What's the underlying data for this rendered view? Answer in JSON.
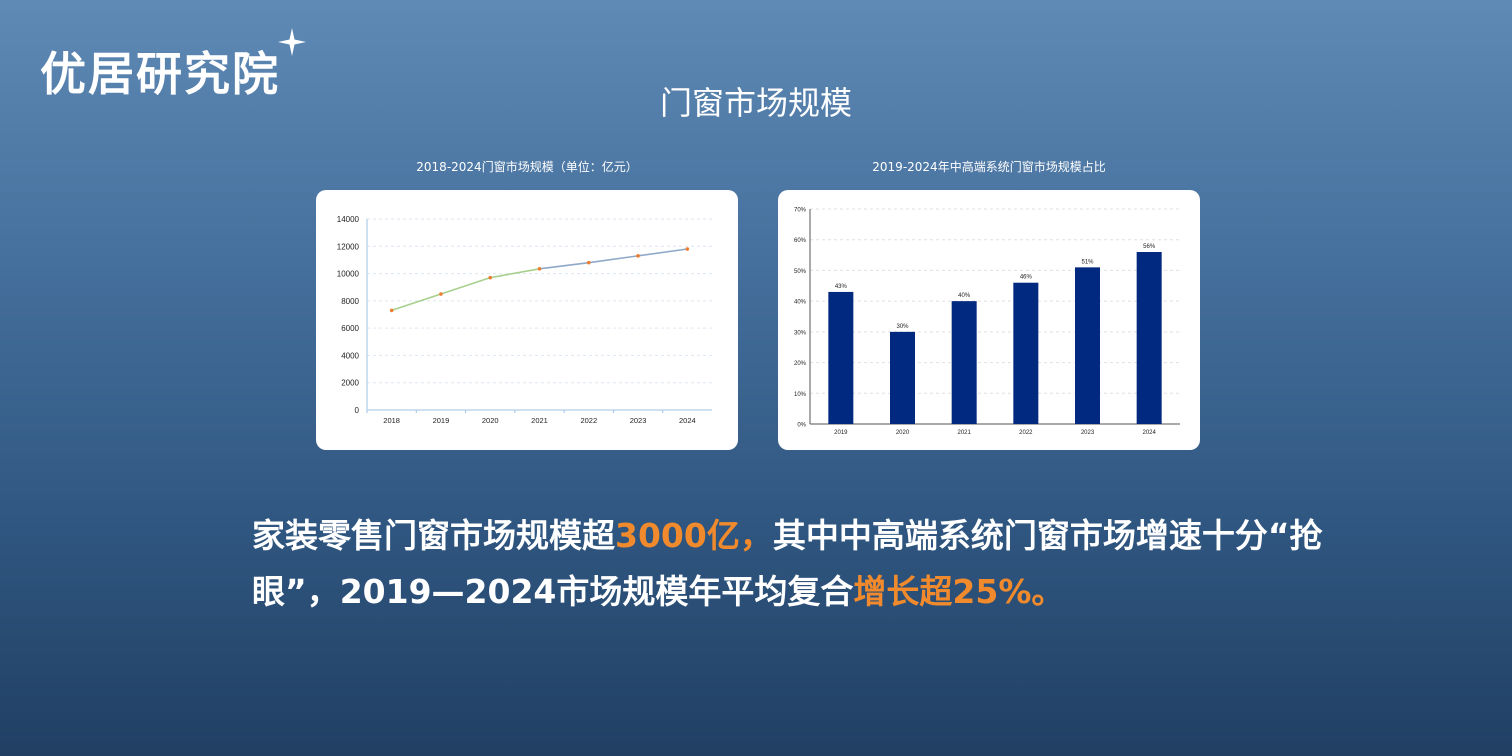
{
  "brand": {
    "name": "优居研究院"
  },
  "page": {
    "title": "门窗市场规模"
  },
  "summary": {
    "part1": "家装零售门窗市场规模超",
    "highlight1": "3000亿，",
    "part2": "其中中高端系统门窗市场增速十分“抢眼”，2019—2024市场规模年平均复合",
    "highlight2": "增长超25%。"
  },
  "colors": {
    "accent": "#f08a2c",
    "bar": "#00297f",
    "line_early": "#a8d08d",
    "line_late": "#8ea8c8",
    "marker": "#ed7d31"
  },
  "chart_data": [
    {
      "type": "line",
      "title": "2018-2024门窗市场规模（单位：亿元）",
      "x": [
        "2018",
        "2019",
        "2020",
        "2021",
        "2022",
        "2023",
        "2024"
      ],
      "values": [
        7300,
        8500,
        9700,
        10350,
        10800,
        11300,
        11800
      ],
      "ylim": [
        0,
        14000
      ],
      "yticks": [
        "0",
        "2000",
        "4000",
        "6000",
        "8000",
        "10000",
        "12000",
        "14000"
      ],
      "grid": true
    },
    {
      "type": "bar",
      "title": "2019-2024年中高端系统门窗市场规模占比",
      "categories": [
        "2019",
        "2020",
        "2021",
        "2022",
        "2023",
        "2024"
      ],
      "values": [
        43,
        30,
        40,
        46,
        51,
        56
      ],
      "data_labels": [
        "43%",
        "30%",
        "40%",
        "46%",
        "51%",
        "56%"
      ],
      "ylim": [
        0,
        70
      ],
      "yticks": [
        "0%",
        "10%",
        "20%",
        "30%",
        "40%",
        "50%",
        "60%",
        "70%"
      ],
      "grid": true
    }
  ]
}
